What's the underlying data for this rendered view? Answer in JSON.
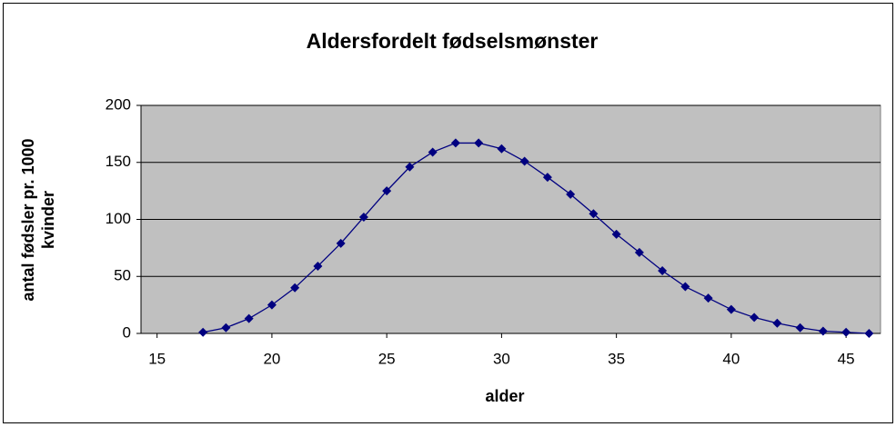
{
  "chart_data": {
    "type": "line",
    "title": "Aldersfordelt fødselsmønster",
    "xlabel": "alder",
    "ylabel": [
      "antal fødsler pr. 1000",
      "kvinder"
    ],
    "x": [
      17,
      18,
      19,
      20,
      21,
      22,
      23,
      24,
      25,
      26,
      27,
      28,
      29,
      30,
      31,
      32,
      33,
      34,
      35,
      36,
      37,
      38,
      39,
      40,
      41,
      42,
      43,
      44,
      45,
      46
    ],
    "series": [
      {
        "color": "#000080",
        "values": [
          1,
          5,
          13,
          25,
          40,
          59,
          79,
          102,
          125,
          146,
          159,
          167,
          167,
          162,
          151,
          137,
          122,
          105,
          87,
          71,
          55,
          41,
          31,
          21,
          14,
          9,
          5,
          2,
          1,
          0
        ]
      }
    ],
    "xlim": [
      14.3,
      46.5
    ],
    "xticks": [
      15,
      20,
      25,
      30,
      35,
      40,
      45
    ],
    "ylim": [
      0,
      200
    ],
    "yticks": [
      0,
      50,
      100,
      150,
      200
    ],
    "grid": true,
    "plot_background": "#c0c0c0"
  }
}
